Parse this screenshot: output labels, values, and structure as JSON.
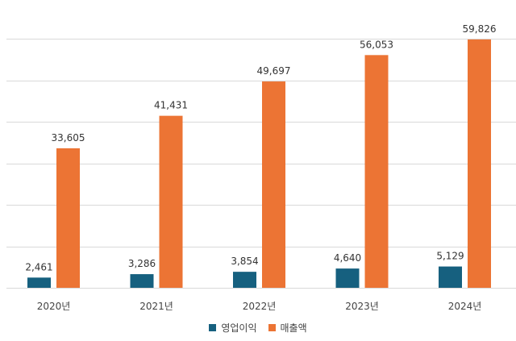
{
  "chart_data": {
    "type": "bar",
    "title": "",
    "xlabel": "",
    "ylabel": "",
    "categories": [
      "2020년",
      "2021년",
      "2022년",
      "2023년",
      "2024년"
    ],
    "series": [
      {
        "name": "영업이익",
        "color": "#16607f",
        "values": [
          2461,
          3286,
          3854,
          4640,
          5129
        ],
        "labels": [
          "2,461",
          "3,286",
          "3,854",
          "4,640",
          "5,129"
        ]
      },
      {
        "name": "매출액",
        "color": "#ec7434",
        "values": [
          33605,
          41431,
          49697,
          56053,
          59826
        ],
        "labels": [
          "33,605",
          "41,431",
          "49,697",
          "56,053",
          "59,826"
        ]
      }
    ],
    "ylim": [
      0,
      60000
    ],
    "grid": true,
    "legend": "bottom-center"
  }
}
